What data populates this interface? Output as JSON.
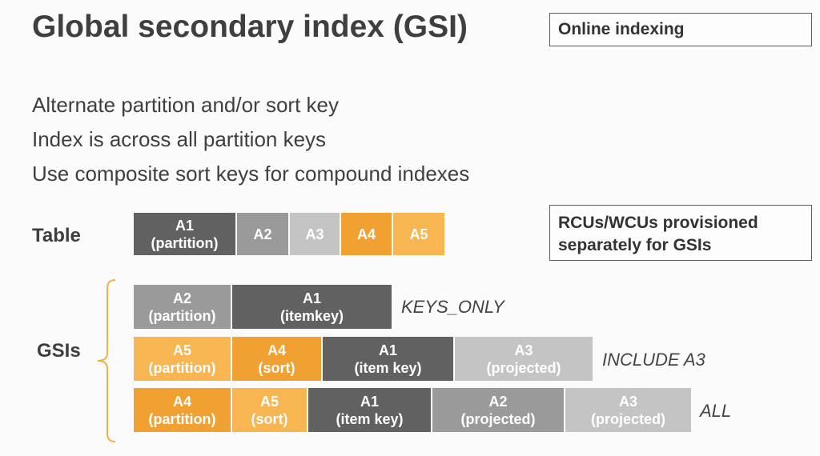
{
  "title": "Global secondary index (GSI)",
  "callouts": {
    "online": "Online indexing",
    "rcu_line1": "RCUs/WCUs provisioned",
    "rcu_line2": "separately for GSIs"
  },
  "bullets": [
    "Alternate partition and/or sort key",
    "Index is across all partition keys",
    "Use composite sort keys for compound indexes"
  ],
  "labels": {
    "table": "Table",
    "gsis": "GSIs"
  },
  "colors": {
    "dark": "#616161",
    "medium": "#9a9a9a",
    "light": "#c4c4c4",
    "orange": "#f0a132",
    "light_orange": "#f7b651",
    "brace": "#f2b046"
  },
  "table_row": [
    {
      "name": "A1",
      "sub": "(partition)",
      "color": "dark"
    },
    {
      "name": "A2",
      "sub": "",
      "color": "medium"
    },
    {
      "name": "A3",
      "sub": "",
      "color": "light"
    },
    {
      "name": "A4",
      "sub": "",
      "color": "orange"
    },
    {
      "name": "A5",
      "sub": "",
      "color": "light_orange"
    }
  ],
  "gsi_rows": [
    {
      "tag": "KEYS_ONLY",
      "cells": [
        {
          "name": "A2",
          "sub": "(partition)",
          "color": "medium"
        },
        {
          "name": "A1",
          "sub": "(itemkey)",
          "color": "dark"
        }
      ]
    },
    {
      "tag": "INCLUDE A3",
      "cells": [
        {
          "name": "A5",
          "sub": "(partition)",
          "color": "light_orange"
        },
        {
          "name": "A4",
          "sub": "(sort)",
          "color": "orange"
        },
        {
          "name": "A1",
          "sub": "(item key)",
          "color": "dark"
        },
        {
          "name": "A3",
          "sub": "(projected)",
          "color": "light"
        }
      ]
    },
    {
      "tag": "ALL",
      "cells": [
        {
          "name": "A4",
          "sub": "(partition)",
          "color": "orange"
        },
        {
          "name": "A5",
          "sub": "(sort)",
          "color": "light_orange"
        },
        {
          "name": "A1",
          "sub": "(item key)",
          "color": "dark"
        },
        {
          "name": "A2",
          "sub": "(projected)",
          "color": "medium"
        },
        {
          "name": "A3",
          "sub": "(projected)",
          "color": "light"
        }
      ]
    }
  ]
}
